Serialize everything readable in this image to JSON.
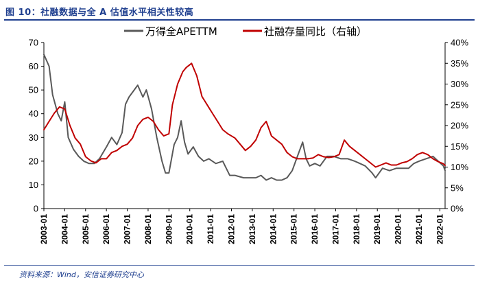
{
  "figure": {
    "title": "图 10：社融数据与全 A 估值水平相关性较高",
    "source": "资料来源：Wind，安信证券研究中心"
  },
  "chart_data": {
    "type": "line",
    "x_start": "2003-01",
    "x_end": "2022-04",
    "categories": [
      "2003-01",
      "2004-01",
      "2005-01",
      "2006-01",
      "2007-01",
      "2008-01",
      "2009-01",
      "2010-01",
      "2011-01",
      "2012-01",
      "2013-01",
      "2014-01",
      "2015-01",
      "2016-01",
      "2017-01",
      "2018-01",
      "2019-01",
      "2020-01",
      "2021-01",
      "2022-01"
    ],
    "ylim_left": [
      0,
      70
    ],
    "yticks_left": [
      "0",
      "10",
      "20",
      "30",
      "40",
      "50",
      "60",
      "70"
    ],
    "ylim_right": [
      0,
      40
    ],
    "yticks_right": [
      "0%",
      "5%",
      "10%",
      "15%",
      "20%",
      "25%",
      "30%",
      "35%",
      "40%"
    ],
    "grid": false,
    "legend_position": "top-center",
    "series": [
      {
        "name": "万得全APETTM",
        "axis": "left",
        "color": "#595959",
        "x": [
          "2003-01",
          "2003-04",
          "2003-06",
          "2003-09",
          "2003-11",
          "2004-01",
          "2004-03",
          "2004-06",
          "2004-09",
          "2004-12",
          "2005-03",
          "2005-06",
          "2005-09",
          "2006-01",
          "2006-04",
          "2006-07",
          "2006-10",
          "2006-12",
          "2007-02",
          "2007-05",
          "2007-07",
          "2007-10",
          "2007-12",
          "2008-03",
          "2008-06",
          "2008-09",
          "2008-11",
          "2009-01",
          "2009-04",
          "2009-06",
          "2009-08",
          "2009-10",
          "2009-12",
          "2010-03",
          "2010-06",
          "2010-09",
          "2010-12",
          "2011-04",
          "2011-08",
          "2011-12",
          "2012-03",
          "2012-08",
          "2012-12",
          "2013-03",
          "2013-06",
          "2013-09",
          "2013-12",
          "2014-03",
          "2014-06",
          "2014-09",
          "2014-12",
          "2015-03",
          "2015-06",
          "2015-08",
          "2015-10",
          "2016-01",
          "2016-04",
          "2016-08",
          "2016-12",
          "2017-04",
          "2017-08",
          "2017-12",
          "2018-03",
          "2018-06",
          "2018-10",
          "2018-12",
          "2019-04",
          "2019-08",
          "2019-12",
          "2020-03",
          "2020-07",
          "2020-10",
          "2021-01",
          "2021-05",
          "2021-09",
          "2021-12",
          "2022-03",
          "2022-04"
        ],
        "values": [
          65,
          60,
          48,
          40,
          37,
          45,
          30,
          25,
          22,
          20,
          19,
          19,
          21,
          26,
          30,
          27,
          32,
          44,
          47,
          50,
          52,
          47,
          50,
          42,
          30,
          20,
          15,
          15,
          27,
          30,
          37,
          28,
          23,
          26,
          22,
          20,
          21,
          19,
          20,
          14,
          14,
          13,
          13,
          13,
          14,
          12,
          13,
          12,
          12,
          13,
          16,
          22,
          28,
          21,
          18,
          19,
          18,
          22,
          22,
          21,
          21,
          20,
          19,
          18,
          15,
          13,
          17,
          16,
          17,
          17,
          17,
          19,
          20,
          21,
          22,
          20,
          18,
          16
        ]
      },
      {
        "name": "社融存量同比（右轴）",
        "axis": "right",
        "color": "#c00000",
        "x": [
          "2003-01",
          "2003-04",
          "2003-07",
          "2003-10",
          "2004-01",
          "2004-04",
          "2004-07",
          "2004-10",
          "2005-01",
          "2005-04",
          "2005-07",
          "2005-10",
          "2006-01",
          "2006-04",
          "2006-07",
          "2006-10",
          "2007-01",
          "2007-04",
          "2007-07",
          "2007-10",
          "2008-01",
          "2008-04",
          "2008-07",
          "2008-10",
          "2009-01",
          "2009-03",
          "2009-06",
          "2009-09",
          "2009-11",
          "2010-02",
          "2010-05",
          "2010-08",
          "2010-11",
          "2011-02",
          "2011-05",
          "2011-08",
          "2011-11",
          "2012-03",
          "2012-06",
          "2012-09",
          "2012-12",
          "2013-03",
          "2013-06",
          "2013-09",
          "2013-12",
          "2014-03",
          "2014-06",
          "2014-09",
          "2014-12",
          "2015-03",
          "2015-06",
          "2015-09",
          "2015-12",
          "2016-03",
          "2016-06",
          "2016-09",
          "2016-12",
          "2017-03",
          "2017-06",
          "2017-09",
          "2017-12",
          "2018-03",
          "2018-06",
          "2018-09",
          "2018-12",
          "2019-03",
          "2019-06",
          "2019-09",
          "2019-12",
          "2020-03",
          "2020-06",
          "2020-09",
          "2020-12",
          "2021-03",
          "2021-06",
          "2021-09",
          "2021-12",
          "2022-03",
          "2022-04"
        ],
        "values": [
          19,
          21,
          23,
          24.5,
          24,
          20,
          17,
          15.5,
          12.5,
          11.5,
          11,
          12,
          12,
          13.5,
          14,
          15,
          15.5,
          17,
          20,
          21.5,
          22,
          21,
          19,
          17.5,
          18,
          25,
          30,
          33,
          34,
          35,
          32,
          27,
          25,
          23,
          21,
          19,
          18,
          17,
          15.5,
          14,
          15,
          16.5,
          19.5,
          21,
          17.5,
          16.5,
          15.5,
          13.5,
          12.5,
          12,
          12,
          12,
          12.2,
          13,
          12.5,
          12.3,
          12.5,
          13,
          16.5,
          15,
          14,
          13,
          12,
          11,
          10,
          10.5,
          11,
          10.5,
          10.5,
          11,
          11.3,
          12,
          13,
          13.5,
          13,
          12,
          11.3,
          10.8,
          10.4
        ]
      }
    ]
  }
}
